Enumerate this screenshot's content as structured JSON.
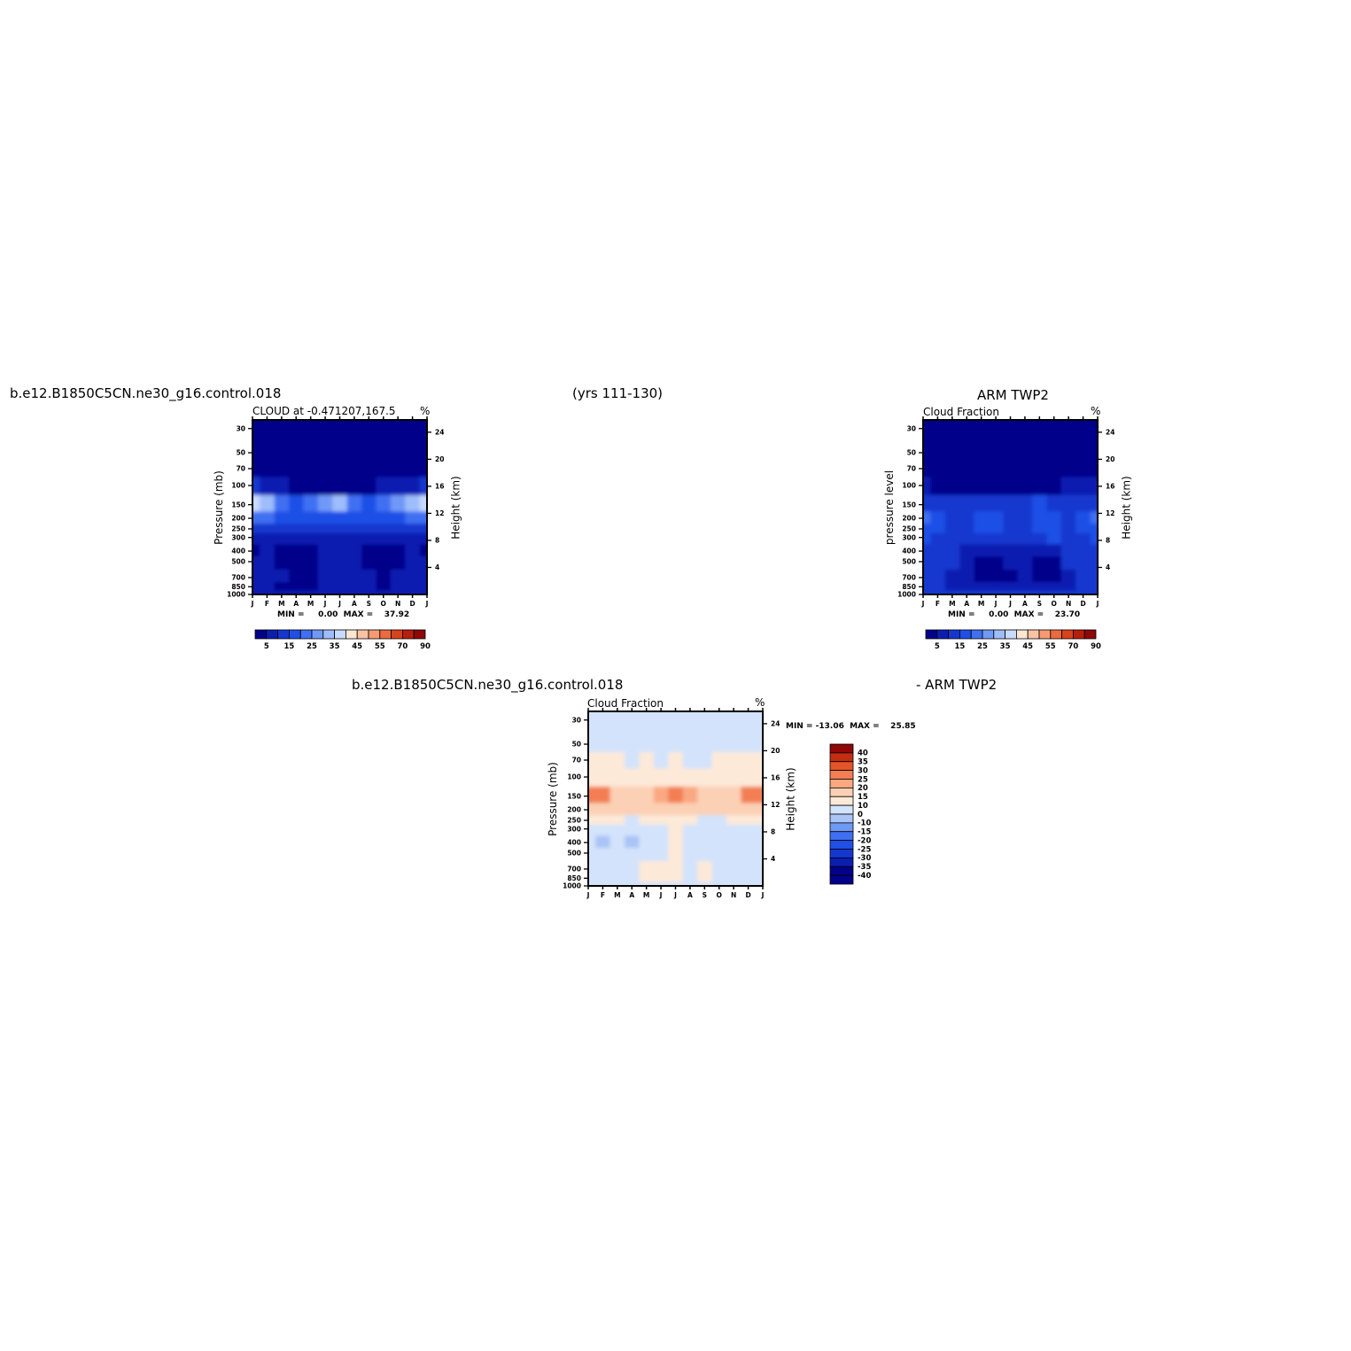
{
  "headers": {
    "top_left_case": "b.e12.B1850C5CN.ne30_g16.control.018",
    "top_center_years": "(yrs 111-130)",
    "top_right_obs": "ARM TWP2",
    "bottom_case": "b.e12.B1850C5CN.ne30_g16.control.018",
    "bottom_obs": "- ARM TWP2"
  },
  "panels": [
    {
      "id": "model",
      "title": "CLOUD at -0.471207,167.5",
      "units": "%",
      "ylabel_left": "Pressure (mb)",
      "ylabel_right": "Height (km)",
      "min_max_text": "MIN =     0.00  MAX =    37.92"
    },
    {
      "id": "obs",
      "title": "Cloud Fraction",
      "units": "%",
      "ylabel_left": "pressure level",
      "ylabel_right": "Height (km)",
      "min_max_text": "MIN =     0.00  MAX =    23.70"
    },
    {
      "id": "diff",
      "title": "Cloud Fraction",
      "units": "%",
      "ylabel_left": "Pressure (mb)",
      "ylabel_right": "Height (km)",
      "min_max_text": "MIN = -13.06  MAX =    25.85"
    }
  ],
  "chart_data": [
    {
      "type": "heatmap",
      "title": "CLOUD at -0.471207,167.5",
      "units": "%",
      "x": [
        "J",
        "F",
        "M",
        "A",
        "M",
        "J",
        "J",
        "A",
        "S",
        "O",
        "N",
        "D",
        "J"
      ],
      "y_pressure_mb": [
        30,
        50,
        70,
        100,
        150,
        200,
        250,
        300,
        400,
        500,
        700,
        850,
        1000
      ],
      "y_height_km": [
        24,
        20,
        16,
        12,
        8,
        4
      ],
      "min": 0.0,
      "max": 37.92,
      "colorbar_levels": [
        5,
        10,
        15,
        20,
        25,
        30,
        35,
        40,
        45,
        50,
        55,
        60,
        70,
        80,
        90
      ],
      "colorbar_labels": [
        "5",
        "15",
        "25",
        "35",
        "45",
        "55",
        "70",
        "90"
      ],
      "values": [
        [
          0,
          0,
          0,
          0,
          0,
          0,
          0,
          0,
          0,
          0,
          0,
          0,
          0
        ],
        [
          0,
          0,
          0,
          0,
          0,
          0,
          0,
          0,
          0,
          0,
          0,
          0,
          0
        ],
        [
          1,
          1,
          1,
          1,
          1,
          1,
          1,
          1,
          1,
          1,
          1,
          1,
          1
        ],
        [
          10,
          8,
          6,
          4,
          3,
          3,
          3,
          3,
          4,
          5,
          7,
          9,
          10
        ],
        [
          36,
          30,
          22,
          18,
          22,
          28,
          30,
          22,
          18,
          22,
          28,
          34,
          36
        ],
        [
          22,
          20,
          18,
          16,
          16,
          18,
          18,
          16,
          15,
          16,
          18,
          20,
          22
        ],
        [
          13,
          12,
          12,
          11,
          11,
          11,
          11,
          11,
          11,
          11,
          12,
          12,
          13
        ],
        [
          9,
          9,
          8,
          8,
          8,
          8,
          8,
          8,
          8,
          8,
          8,
          9,
          9
        ],
        [
          4,
          5,
          3,
          2,
          3,
          6,
          7,
          5,
          3,
          2,
          3,
          6,
          4
        ],
        [
          6,
          6,
          4,
          3,
          4,
          8,
          9,
          6,
          4,
          3,
          4,
          7,
          6
        ],
        [
          6,
          5,
          5,
          3,
          4,
          7,
          7,
          6,
          5,
          4,
          5,
          6,
          6
        ],
        [
          6,
          5,
          4,
          2,
          3,
          6,
          7,
          6,
          5,
          4,
          5,
          6,
          6
        ],
        [
          8,
          8,
          8,
          8,
          8,
          8,
          8,
          8,
          8,
          8,
          8,
          8,
          8
        ]
      ]
    },
    {
      "type": "heatmap",
      "title": "Cloud Fraction",
      "source": "ARM TWP2",
      "units": "%",
      "x": [
        "J",
        "F",
        "M",
        "A",
        "M",
        "J",
        "J",
        "A",
        "S",
        "O",
        "N",
        "D",
        "J"
      ],
      "y_pressure_mb": [
        30,
        50,
        70,
        100,
        150,
        200,
        250,
        300,
        400,
        500,
        700,
        850,
        1000
      ],
      "y_height_km": [
        24,
        20,
        16,
        12,
        8,
        4
      ],
      "min": 0.0,
      "max": 23.7,
      "colorbar_levels": [
        5,
        10,
        15,
        20,
        25,
        30,
        35,
        40,
        45,
        50,
        55,
        60,
        70,
        80,
        90
      ],
      "colorbar_labels": [
        "5",
        "15",
        "25",
        "35",
        "45",
        "55",
        "70",
        "90"
      ],
      "values": [
        [
          0,
          0,
          0,
          0,
          0,
          0,
          0,
          0,
          0,
          0,
          0,
          0,
          0
        ],
        [
          0,
          0,
          0,
          0,
          0,
          0,
          0,
          0,
          0,
          0,
          0,
          0,
          0
        ],
        [
          0,
          0,
          0,
          0,
          0,
          0,
          0,
          0,
          0,
          0,
          0,
          0,
          0
        ],
        [
          6,
          4,
          2,
          1,
          1,
          1,
          2,
          2,
          3,
          4,
          6,
          7,
          7
        ],
        [
          14,
          12,
          10,
          11,
          12,
          10,
          12,
          14,
          16,
          14,
          12,
          13,
          14
        ],
        [
          20,
          18,
          13,
          13,
          16,
          17,
          14,
          13,
          18,
          17,
          14,
          18,
          20
        ],
        [
          18,
          15,
          13,
          12,
          15,
          16,
          13,
          12,
          16,
          18,
          14,
          16,
          18
        ],
        [
          16,
          13,
          13,
          12,
          13,
          13,
          12,
          12,
          13,
          17,
          13,
          13,
          16
        ],
        [
          13,
          11,
          11,
          7,
          7,
          6,
          7,
          7,
          8,
          9,
          11,
          12,
          13
        ],
        [
          12,
          11,
          10,
          6,
          4,
          4,
          5,
          5,
          3,
          4,
          10,
          12,
          12
        ],
        [
          11,
          11,
          9,
          6,
          4,
          4,
          4,
          5,
          3,
          3,
          8,
          11,
          11
        ],
        [
          10,
          10,
          9,
          7,
          6,
          7,
          7,
          7,
          6,
          5,
          8,
          10,
          10
        ],
        [
          11,
          11,
          11,
          11,
          11,
          11,
          11,
          11,
          11,
          11,
          11,
          11,
          11
        ]
      ]
    },
    {
      "type": "heatmap",
      "title": "Cloud Fraction",
      "units": "%",
      "x": [
        "J",
        "F",
        "M",
        "A",
        "M",
        "J",
        "J",
        "A",
        "S",
        "O",
        "N",
        "D",
        "J"
      ],
      "y_pressure_mb": [
        30,
        50,
        70,
        100,
        150,
        200,
        250,
        300,
        400,
        500,
        700,
        850,
        1000
      ],
      "y_height_km": [
        24,
        20,
        16,
        12,
        8,
        4
      ],
      "min": -13.06,
      "max": 25.85,
      "colorbar_levels": [
        -40,
        -35,
        -30,
        -25,
        -20,
        -15,
        -10,
        0,
        10,
        15,
        20,
        25,
        30,
        35,
        40
      ],
      "colorbar_labels": [
        "40",
        "35",
        "30",
        "25",
        "20",
        "15",
        "10",
        "0",
        "-10",
        "-15",
        "-20",
        "-25",
        "-30",
        "-35",
        "-40"
      ],
      "values": [
        [
          -1,
          -1,
          -1,
          -1,
          -1,
          -1,
          -1,
          -1,
          -1,
          -1,
          -1,
          -1,
          -1
        ],
        [
          -1,
          -1,
          -1,
          -1,
          -1,
          -1,
          -1,
          -1,
          -1,
          -1,
          -1,
          -1,
          -1
        ],
        [
          2,
          2,
          1,
          -1,
          1,
          -1,
          2,
          -1,
          -1,
          1,
          2,
          2,
          2
        ],
        [
          6,
          6,
          6,
          5,
          4,
          4,
          4,
          4,
          4,
          4,
          4,
          5,
          6
        ],
        [
          22,
          20,
          14,
          10,
          12,
          19,
          24,
          15,
          12,
          10,
          14,
          20,
          22
        ],
        [
          12,
          12,
          12,
          12,
          10,
          10,
          12,
          10,
          10,
          11,
          12,
          12,
          12
        ],
        [
          1,
          1,
          1,
          -1,
          1,
          2,
          2,
          1,
          -1,
          -1,
          1,
          1,
          1
        ],
        [
          -4,
          -4,
          -2,
          -2,
          -1,
          -1,
          1,
          -1,
          -1,
          -1,
          -1,
          -2,
          -3
        ],
        [
          -10,
          -12,
          -10,
          -11,
          -1,
          -1,
          2,
          -1,
          -1,
          -1,
          -1,
          -1,
          -2
        ],
        [
          -2,
          -2,
          -2,
          -2,
          -1,
          -1,
          2,
          -1,
          -1,
          -1,
          -1,
          -1,
          -2
        ],
        [
          -1,
          -1,
          -1,
          -1,
          3,
          4,
          5,
          -1,
          3,
          -1,
          -1,
          -1,
          -1
        ],
        [
          -1,
          -1,
          -1,
          -1,
          2,
          3,
          4,
          -1,
          2,
          -1,
          -1,
          -1,
          -1
        ],
        [
          -1,
          -1,
          -1,
          -1,
          -1,
          -1,
          -1,
          -1,
          -1,
          -1,
          -1,
          -1,
          -1
        ]
      ]
    }
  ],
  "colors": {
    "full": [
      "#03008a",
      "#0a1fb0",
      "#1537cf",
      "#1f4fe6",
      "#3f70f2",
      "#6f99f7",
      "#9ebdfb",
      "#c9daff",
      "#fde6d2",
      "#f9c3a3",
      "#f79a73",
      "#ec6a3e",
      "#d8431c",
      "#b71f0c",
      "#8f0707"
    ],
    "diff": [
      "#03008a",
      "#0a1fb0",
      "#1537cf",
      "#1f4fe6",
      "#3f70f2",
      "#6f99f7",
      "#a9c4f5",
      "#d3e3fb",
      "#fde9d8",
      "#fbd0b4",
      "#f9a882",
      "#f37e53",
      "#e25528",
      "#c42d10",
      "#8f0707"
    ]
  }
}
